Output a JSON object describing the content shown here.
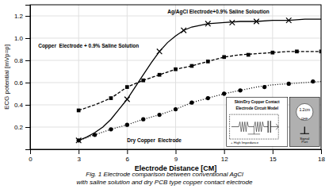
{
  "chart_data": {
    "type": "line",
    "title": "",
    "xlabel": "Electrode Distance [CM]",
    "ylabel": "ECG potential [mVp=p]",
    "xlim": [
      0,
      18
    ],
    "ylim": [
      0,
      1.3
    ],
    "xticks": [
      0,
      3,
      6,
      9,
      12,
      15,
      18
    ],
    "yticks": [
      0.2,
      0.4,
      0.6,
      0.8,
      {
        "value": 1.0,
        "label": "1.0"
      },
      1.2
    ],
    "grid": true,
    "series": [
      {
        "type": "line",
        "line_style": "solid",
        "color": "#000000",
        "x": [
          3.0,
          3.5,
          4.0,
          4.5,
          5.0,
          5.5,
          6.0,
          6.5,
          7.0,
          7.5,
          8.0,
          8.5,
          9.0,
          9.5,
          10.0,
          11.0,
          12.0,
          13.0,
          14.0,
          15.0,
          16.0,
          17.0,
          18.0
        ],
        "values": [
          0.08,
          0.11,
          0.15,
          0.2,
          0.27,
          0.36,
          0.45,
          0.56,
          0.67,
          0.78,
          0.88,
          0.96,
          1.02,
          1.07,
          1.1,
          1.13,
          1.14,
          1.15,
          1.15,
          1.16,
          1.16,
          1.17,
          1.17
        ]
      },
      {
        "type": "scatter",
        "marker": "x",
        "color": "#000000",
        "x": [
          3.0,
          6.0,
          8.0,
          9.5,
          11.0,
          12.5,
          14.0,
          16.0
        ],
        "values": [
          0.08,
          0.45,
          0.88,
          1.07,
          1.13,
          1.14,
          1.15,
          1.16
        ]
      },
      {
        "type": "line",
        "line_style": "dashed",
        "color": "#000000",
        "x": [
          3.0,
          4.0,
          5.0,
          6.0,
          7.0,
          8.0,
          9.0,
          10.0,
          11.0,
          12.0,
          13.0,
          14.0,
          15.0,
          16.0,
          17.0,
          18.0
        ],
        "values": [
          0.35,
          0.4,
          0.46,
          0.56,
          0.62,
          0.67,
          0.72,
          0.75,
          0.79,
          0.83,
          0.85,
          0.86,
          0.87,
          0.88,
          0.88,
          0.88
        ]
      },
      {
        "type": "scatter",
        "marker": "square",
        "color": "#000000",
        "x": [
          3.0,
          5.0,
          6.0,
          7.0,
          8.0,
          9.0,
          10.0,
          11.0,
          12.0,
          13.5,
          15.0,
          16.5,
          18.0
        ],
        "values": [
          0.35,
          0.46,
          0.56,
          0.62,
          0.67,
          0.72,
          0.75,
          0.79,
          0.83,
          0.85,
          0.87,
          0.88,
          0.88
        ]
      },
      {
        "type": "line",
        "line_style": "dotted",
        "color": "#000000",
        "x": [
          3.0,
          4.0,
          5.0,
          6.0,
          7.0,
          8.0,
          9.0,
          10.0,
          11.0,
          12.0,
          13.0,
          14.0,
          15.0,
          16.0,
          17.0,
          18.0
        ],
        "values": [
          0.08,
          0.13,
          0.18,
          0.22,
          0.27,
          0.31,
          0.36,
          0.42,
          0.46,
          0.5,
          0.53,
          0.56,
          0.58,
          0.59,
          0.6,
          0.61
        ]
      },
      {
        "type": "scatter",
        "marker": "circle",
        "color": "#000000",
        "x": [
          3.0,
          4.0,
          5.0,
          6.0,
          7.0,
          8.0,
          9.0,
          10.0,
          11.0,
          12.0,
          13.0,
          14.5,
          16.0,
          17.5
        ],
        "values": [
          0.08,
          0.13,
          0.18,
          0.22,
          0.27,
          0.31,
          0.36,
          0.42,
          0.46,
          0.5,
          0.53,
          0.56,
          0.59,
          0.61
        ]
      }
    ],
    "annotations": [
      "Ag/AgCl Electrode+0.9% Saline Soloution",
      "Copper  Electrode + 0.9% Saline Solution",
      "Dry Copper  Electrode",
      "Skin/Dry Copper Contact",
      "Electrode Circuit Model",
      "+ High Impedance",
      "1.2cm",
      "ΩHF",
      "Signal\nPort",
      "Fig. 1 Electrode comparison between conventional AgCl\nwith saline solution and dry PCB type copper contact electrode"
    ]
  }
}
